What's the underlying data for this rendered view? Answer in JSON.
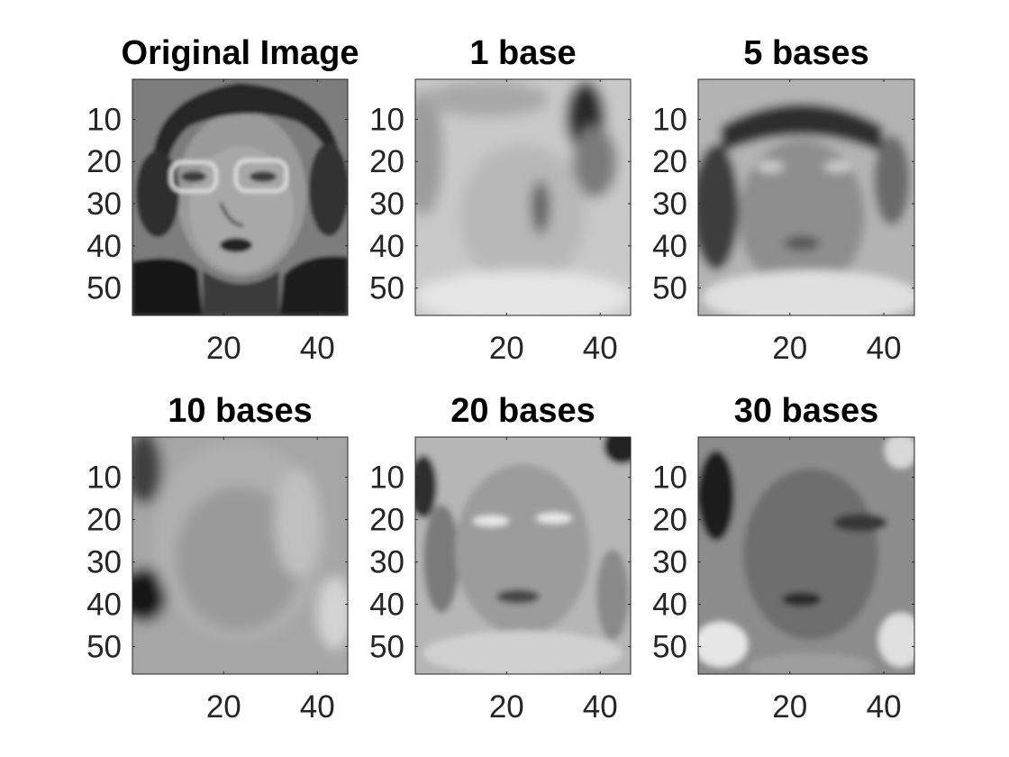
{
  "chart_data": [
    {
      "type": "heatmap",
      "title": "Original Image",
      "image": "grayscale face photo",
      "xlim": [
        0.5,
        46.5
      ],
      "ylim": [
        0.5,
        56.5
      ],
      "y_reversed": true,
      "xticks": [
        20,
        40
      ],
      "yticks": [
        10,
        20,
        30,
        40,
        50
      ],
      "xtick_labels": [
        "20",
        "40"
      ],
      "ytick_labels": [
        "10",
        "20",
        "30",
        "40",
        "50"
      ],
      "colormap": "gray",
      "grid": false
    },
    {
      "type": "heatmap",
      "title": "1 base",
      "image": "reconstruction with 1 base",
      "xlim": [
        0.5,
        46.5
      ],
      "ylim": [
        0.5,
        56.5
      ],
      "y_reversed": true,
      "xticks": [
        20,
        40
      ],
      "yticks": [
        10,
        20,
        30,
        40,
        50
      ],
      "xtick_labels": [
        "20",
        "40"
      ],
      "ytick_labels": [
        "10",
        "20",
        "30",
        "40",
        "50"
      ],
      "colormap": "gray",
      "grid": false
    },
    {
      "type": "heatmap",
      "title": "5 bases",
      "image": "reconstruction with 5 bases",
      "xlim": [
        0.5,
        46.5
      ],
      "ylim": [
        0.5,
        56.5
      ],
      "y_reversed": true,
      "xticks": [
        20,
        40
      ],
      "yticks": [
        10,
        20,
        30,
        40,
        50
      ],
      "xtick_labels": [
        "20",
        "40"
      ],
      "ytick_labels": [
        "10",
        "20",
        "30",
        "40",
        "50"
      ],
      "colormap": "gray",
      "grid": false
    },
    {
      "type": "heatmap",
      "title": "10 bases",
      "image": "reconstruction with 10 bases",
      "xlim": [
        0.5,
        46.5
      ],
      "ylim": [
        0.5,
        56.5
      ],
      "y_reversed": true,
      "xticks": [
        20,
        40
      ],
      "yticks": [
        10,
        20,
        30,
        40,
        50
      ],
      "xtick_labels": [
        "20",
        "40"
      ],
      "ytick_labels": [
        "10",
        "20",
        "30",
        "40",
        "50"
      ],
      "colormap": "gray",
      "grid": false
    },
    {
      "type": "heatmap",
      "title": "20 bases",
      "image": "reconstruction with 20 bases",
      "xlim": [
        0.5,
        46.5
      ],
      "ylim": [
        0.5,
        56.5
      ],
      "y_reversed": true,
      "xticks": [
        20,
        40
      ],
      "yticks": [
        10,
        20,
        30,
        40,
        50
      ],
      "xtick_labels": [
        "20",
        "40"
      ],
      "ytick_labels": [
        "10",
        "20",
        "30",
        "40",
        "50"
      ],
      "colormap": "gray",
      "grid": false
    },
    {
      "type": "heatmap",
      "title": "30 bases",
      "image": "reconstruction with 30 bases",
      "xlim": [
        0.5,
        46.5
      ],
      "ylim": [
        0.5,
        56.5
      ],
      "y_reversed": true,
      "xticks": [
        20,
        40
      ],
      "yticks": [
        10,
        20,
        30,
        40,
        50
      ],
      "xtick_labels": [
        "20",
        "40"
      ],
      "ytick_labels": [
        "10",
        "20",
        "30",
        "40",
        "50"
      ],
      "colormap": "gray",
      "grid": false
    }
  ]
}
